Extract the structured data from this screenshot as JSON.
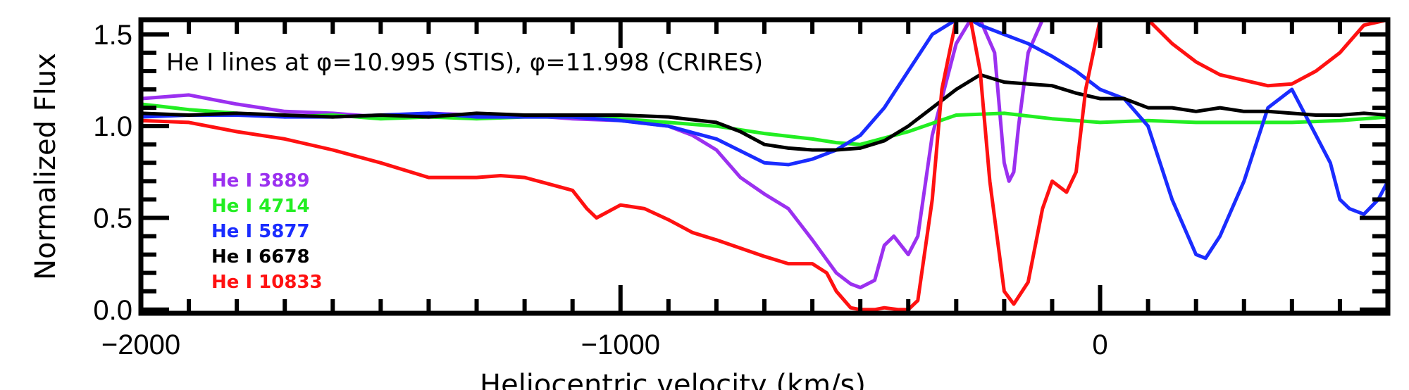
{
  "chart_data": {
    "type": "line",
    "title": "",
    "annotation": "He I lines at φ=10.995 (STIS), φ=11.998 (CRIRES)",
    "xlabel": "Heliocentric velocity (km/s)",
    "ylabel": "Normalized Flux",
    "xlim": [
      -2000,
      600
    ],
    "ylim": [
      -0.02,
      1.58
    ],
    "xticks": [
      -2000,
      -1000,
      0
    ],
    "xtick_labels": [
      "−2000",
      "−1000",
      "0"
    ],
    "yticks": [
      0.0,
      0.5,
      1.0,
      1.5
    ],
    "ytick_labels": [
      "0.0",
      "0.5",
      "1.0",
      "1.5"
    ],
    "legend_position": "left",
    "series": [
      {
        "name": "He I 3889",
        "color": "#9b30f0",
        "x": [
          -2000,
          -1900,
          -1800,
          -1700,
          -1600,
          -1500,
          -1400,
          -1300,
          -1200,
          -1100,
          -1000,
          -900,
          -850,
          -800,
          -750,
          -700,
          -650,
          -600,
          -550,
          -520,
          -500,
          -470,
          -450,
          -430,
          -400,
          -380,
          -350,
          -300,
          -270,
          -250,
          -220,
          -200,
          -190,
          -180,
          -170,
          -150,
          -120
        ],
        "y": [
          1.15,
          1.17,
          1.12,
          1.08,
          1.07,
          1.05,
          1.07,
          1.06,
          1.06,
          1.04,
          1.03,
          1.0,
          0.95,
          0.87,
          0.72,
          0.63,
          0.55,
          0.38,
          0.2,
          0.14,
          0.12,
          0.16,
          0.35,
          0.4,
          0.3,
          0.4,
          0.95,
          1.45,
          1.58,
          1.58,
          1.4,
          0.8,
          0.7,
          0.75,
          1.0,
          1.4,
          1.58
        ]
      },
      {
        "name": "He I 4714",
        "color": "#22ee22",
        "x": [
          -2000,
          -1900,
          -1800,
          -1700,
          -1600,
          -1500,
          -1400,
          -1300,
          -1200,
          -1100,
          -1000,
          -900,
          -800,
          -700,
          -600,
          -550,
          -500,
          -400,
          -300,
          -200,
          -100,
          0,
          100,
          200,
          300,
          400,
          500,
          600
        ],
        "y": [
          1.12,
          1.09,
          1.07,
          1.05,
          1.06,
          1.04,
          1.05,
          1.04,
          1.05,
          1.05,
          1.04,
          1.02,
          1.0,
          0.96,
          0.93,
          0.91,
          0.9,
          0.97,
          1.06,
          1.07,
          1.04,
          1.02,
          1.03,
          1.02,
          1.02,
          1.02,
          1.03,
          1.05
        ]
      },
      {
        "name": "He I 5877",
        "color": "#1a2cff",
        "x": [
          -2000,
          -1900,
          -1800,
          -1700,
          -1600,
          -1500,
          -1400,
          -1300,
          -1200,
          -1100,
          -1000,
          -900,
          -800,
          -700,
          -650,
          -600,
          -550,
          -500,
          -450,
          -400,
          -350,
          -300,
          -270,
          -250,
          -200,
          -150,
          -100,
          -50,
          0,
          50,
          100,
          150,
          200,
          220,
          250,
          300,
          350,
          400,
          450,
          480,
          500,
          520,
          550,
          580,
          600
        ],
        "y": [
          1.05,
          1.06,
          1.06,
          1.05,
          1.05,
          1.06,
          1.07,
          1.05,
          1.05,
          1.05,
          1.03,
          1.0,
          0.93,
          0.8,
          0.79,
          0.82,
          0.87,
          0.95,
          1.1,
          1.3,
          1.5,
          1.58,
          1.58,
          1.55,
          1.5,
          1.45,
          1.38,
          1.3,
          1.2,
          1.15,
          1.0,
          0.6,
          0.3,
          0.28,
          0.4,
          0.7,
          1.1,
          1.2,
          0.95,
          0.8,
          0.6,
          0.55,
          0.52,
          0.6,
          0.7
        ]
      },
      {
        "name": "He I 6678",
        "color": "#000000",
        "x": [
          -2000,
          -1900,
          -1800,
          -1700,
          -1600,
          -1500,
          -1400,
          -1300,
          -1200,
          -1100,
          -1000,
          -900,
          -800,
          -750,
          -700,
          -650,
          -600,
          -550,
          -500,
          -450,
          -400,
          -350,
          -300,
          -250,
          -200,
          -150,
          -100,
          -50,
          0,
          50,
          100,
          150,
          200,
          250,
          300,
          350,
          400,
          450,
          500,
          550,
          600
        ],
        "y": [
          1.07,
          1.06,
          1.07,
          1.06,
          1.05,
          1.06,
          1.05,
          1.07,
          1.06,
          1.06,
          1.06,
          1.05,
          1.02,
          0.97,
          0.9,
          0.88,
          0.87,
          0.87,
          0.88,
          0.92,
          1.0,
          1.1,
          1.2,
          1.28,
          1.24,
          1.23,
          1.22,
          1.18,
          1.15,
          1.15,
          1.1,
          1.1,
          1.08,
          1.1,
          1.08,
          1.08,
          1.07,
          1.06,
          1.06,
          1.07,
          1.06
        ]
      },
      {
        "name": "He I 10833",
        "color": "#ff1111",
        "x": [
          -2000,
          -1900,
          -1800,
          -1700,
          -1600,
          -1500,
          -1400,
          -1300,
          -1250,
          -1200,
          -1100,
          -1070,
          -1050,
          -1000,
          -950,
          -900,
          -850,
          -800,
          -700,
          -650,
          -600,
          -570,
          -550,
          -520,
          -500,
          -470,
          -450,
          -420,
          -400,
          -380,
          -350,
          -330,
          -300,
          -270,
          -250,
          -230,
          -200,
          -180,
          -150,
          -120,
          -100,
          -70,
          -50,
          -30,
          0,
          100,
          150,
          200,
          250,
          300,
          350,
          400,
          450,
          500,
          550,
          600
        ],
        "y": [
          1.03,
          1.02,
          0.97,
          0.93,
          0.87,
          0.8,
          0.72,
          0.72,
          0.73,
          0.72,
          0.65,
          0.55,
          0.5,
          0.57,
          0.55,
          0.49,
          0.42,
          0.38,
          0.29,
          0.25,
          0.25,
          0.2,
          0.1,
          0.01,
          0.0,
          0.0,
          0.01,
          0.0,
          0.0,
          0.05,
          0.6,
          1.2,
          1.58,
          1.58,
          1.3,
          0.7,
          0.1,
          0.03,
          0.15,
          0.55,
          0.7,
          0.64,
          0.75,
          1.2,
          1.58,
          1.58,
          1.45,
          1.35,
          1.28,
          1.25,
          1.22,
          1.23,
          1.3,
          1.4,
          1.55,
          1.58
        ]
      }
    ]
  }
}
